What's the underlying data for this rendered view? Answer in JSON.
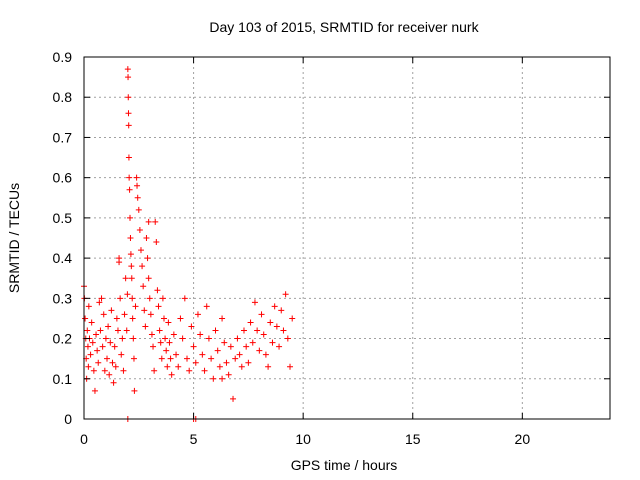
{
  "chart_data": {
    "type": "scatter",
    "title": "Day 103 of 2015, SRMTID for receiver nurk",
    "xlabel": "GPS time / hours",
    "ylabel": "SRMTID / TECUs",
    "xlim": [
      0,
      24
    ],
    "ylim": [
      0,
      0.9
    ],
    "xticks": [
      0,
      5,
      10,
      15,
      20
    ],
    "xtick_labels": [
      "0",
      "5",
      "10",
      "15",
      "20"
    ],
    "yticks": [
      0,
      0.1,
      0.2,
      0.3,
      0.4,
      0.5,
      0.6,
      0.7,
      0.8,
      0.9
    ],
    "ytick_labels": [
      "0",
      "0.1",
      "0.2",
      "0.3",
      "0.4",
      "0.5",
      "0.6",
      "0.7",
      "0.8",
      "0.9"
    ],
    "grid": true,
    "marker": "+",
    "color": "#ff0000",
    "series": [
      {
        "name": "SRMTID",
        "points": [
          [
            0.0,
            0.33
          ],
          [
            0.02,
            0.3
          ],
          [
            0.05,
            0.25
          ],
          [
            0.08,
            0.2
          ],
          [
            0.1,
            0.15
          ],
          [
            0.12,
            0.1
          ],
          [
            0.15,
            0.22
          ],
          [
            0.18,
            0.18
          ],
          [
            0.2,
            0.13
          ],
          [
            0.22,
            0.28
          ],
          [
            0.25,
            0.2
          ],
          [
            0.3,
            0.16
          ],
          [
            0.35,
            0.24
          ],
          [
            0.4,
            0.19
          ],
          [
            0.45,
            0.12
          ],
          [
            0.5,
            0.07
          ],
          [
            0.55,
            0.21
          ],
          [
            0.6,
            0.17
          ],
          [
            0.65,
            0.14
          ],
          [
            0.7,
            0.29
          ],
          [
            0.75,
            0.22
          ],
          [
            0.8,
            0.3
          ],
          [
            0.85,
            0.18
          ],
          [
            0.9,
            0.26
          ],
          [
            0.95,
            0.12
          ],
          [
            1.0,
            0.2
          ],
          [
            1.05,
            0.15
          ],
          [
            1.1,
            0.23
          ],
          [
            1.15,
            0.11
          ],
          [
            1.2,
            0.19
          ],
          [
            1.25,
            0.27
          ],
          [
            1.3,
            0.14
          ],
          [
            1.35,
            0.09
          ],
          [
            1.4,
            0.18
          ],
          [
            1.45,
            0.13
          ],
          [
            1.5,
            0.25
          ],
          [
            1.55,
            0.22
          ],
          [
            1.6,
            0.4
          ],
          [
            1.65,
            0.3
          ],
          [
            1.7,
            0.16
          ],
          [
            1.75,
            0.2
          ],
          [
            1.8,
            0.12
          ],
          [
            1.85,
            0.26
          ],
          [
            1.9,
            0.35
          ],
          [
            1.95,
            0.22
          ],
          [
            1.98,
            0.31
          ],
          [
            2.0,
            0.87
          ],
          [
            2.01,
            0.85
          ],
          [
            2.02,
            0.8
          ],
          [
            2.03,
            0.76
          ],
          [
            2.04,
            0.73
          ],
          [
            2.05,
            0.65
          ],
          [
            2.06,
            0.6
          ],
          [
            2.08,
            0.57
          ],
          [
            2.1,
            0.5
          ],
          [
            2.12,
            0.45
          ],
          [
            2.14,
            0.41
          ],
          [
            2.16,
            0.38
          ],
          [
            2.18,
            0.35
          ],
          [
            2.2,
            0.3
          ],
          [
            2.22,
            0.25
          ],
          [
            2.25,
            0.2
          ],
          [
            2.28,
            0.15
          ],
          [
            2.3,
            0.07
          ],
          [
            2.35,
            0.28
          ],
          [
            2.4,
            0.6
          ],
          [
            2.42,
            0.58
          ],
          [
            2.45,
            0.55
          ],
          [
            2.5,
            0.52
          ],
          [
            2.55,
            0.47
          ],
          [
            2.6,
            0.42
          ],
          [
            2.65,
            0.38
          ],
          [
            2.7,
            0.33
          ],
          [
            2.75,
            0.27
          ],
          [
            2.8,
            0.23
          ],
          [
            2.85,
            0.45
          ],
          [
            2.9,
            0.4
          ],
          [
            2.95,
            0.35
          ],
          [
            3.0,
            0.3
          ],
          [
            3.05,
            0.26
          ],
          [
            3.1,
            0.21
          ],
          [
            3.15,
            0.18
          ],
          [
            3.2,
            0.12
          ],
          [
            3.25,
            0.49
          ],
          [
            3.3,
            0.44
          ],
          [
            3.35,
            0.32
          ],
          [
            3.4,
            0.28
          ],
          [
            3.45,
            0.22
          ],
          [
            3.5,
            0.19
          ],
          [
            3.55,
            0.15
          ],
          [
            3.6,
            0.3
          ],
          [
            3.65,
            0.25
          ],
          [
            3.7,
            0.2
          ],
          [
            3.75,
            0.17
          ],
          [
            3.8,
            0.13
          ],
          [
            3.85,
            0.24
          ],
          [
            3.9,
            0.19
          ],
          [
            3.95,
            0.15
          ],
          [
            4.0,
            0.11
          ],
          [
            4.1,
            0.21
          ],
          [
            4.2,
            0.16
          ],
          [
            4.3,
            0.13
          ],
          [
            4.4,
            0.25
          ],
          [
            4.5,
            0.2
          ],
          [
            4.6,
            0.3
          ],
          [
            4.7,
            0.15
          ],
          [
            4.8,
            0.12
          ],
          [
            4.9,
            0.23
          ],
          [
            5.0,
            0.18
          ],
          [
            5.1,
            0.14
          ],
          [
            5.2,
            0.26
          ],
          [
            5.3,
            0.21
          ],
          [
            5.4,
            0.16
          ],
          [
            5.5,
            0.12
          ],
          [
            5.6,
            0.28
          ],
          [
            5.7,
            0.2
          ],
          [
            5.8,
            0.15
          ],
          [
            5.9,
            0.1
          ],
          [
            6.0,
            0.22
          ],
          [
            6.1,
            0.17
          ],
          [
            6.2,
            0.13
          ],
          [
            6.3,
            0.25
          ],
          [
            6.4,
            0.19
          ],
          [
            6.5,
            0.14
          ],
          [
            6.6,
            0.11
          ],
          [
            6.7,
            0.18
          ],
          [
            6.8,
            0.05
          ],
          [
            6.9,
            0.15
          ],
          [
            7.0,
            0.2
          ],
          [
            7.1,
            0.16
          ],
          [
            7.2,
            0.13
          ],
          [
            7.3,
            0.22
          ],
          [
            7.4,
            0.18
          ],
          [
            7.5,
            0.14
          ],
          [
            7.6,
            0.24
          ],
          [
            7.7,
            0.19
          ],
          [
            7.8,
            0.29
          ],
          [
            7.9,
            0.22
          ],
          [
            8.0,
            0.17
          ],
          [
            8.1,
            0.26
          ],
          [
            8.2,
            0.21
          ],
          [
            8.3,
            0.16
          ],
          [
            8.4,
            0.13
          ],
          [
            8.5,
            0.24
          ],
          [
            8.6,
            0.19
          ],
          [
            8.7,
            0.28
          ],
          [
            8.8,
            0.23
          ],
          [
            8.9,
            0.18
          ],
          [
            9.0,
            0.27
          ],
          [
            9.1,
            0.22
          ],
          [
            9.2,
            0.31
          ],
          [
            9.3,
            0.2
          ],
          [
            9.4,
            0.13
          ],
          [
            9.5,
            0.25
          ],
          [
            2.0,
            0.0
          ],
          [
            5.0,
            0.0
          ],
          [
            5.1,
            0.0
          ],
          [
            1.6,
            0.39
          ],
          [
            2.95,
            0.49
          ],
          [
            6.3,
            0.1
          ]
        ]
      }
    ]
  }
}
